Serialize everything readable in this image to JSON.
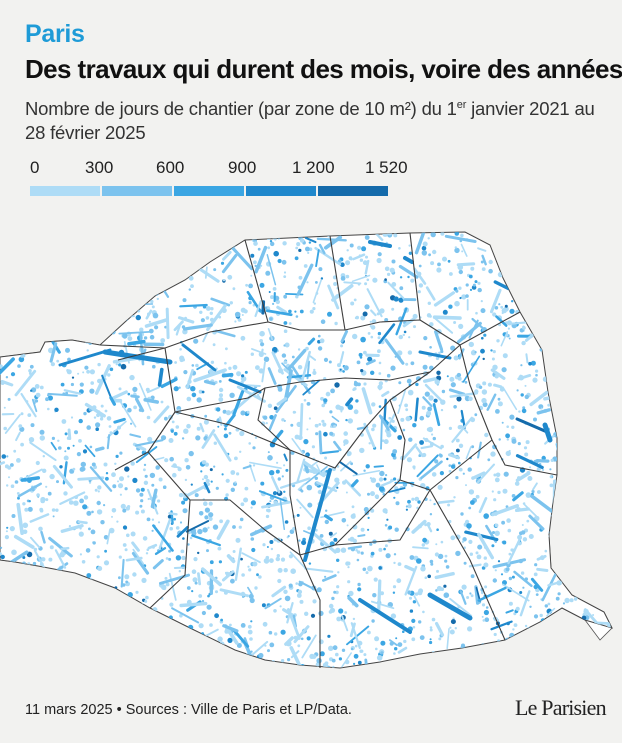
{
  "header": {
    "kicker": "Paris",
    "title": "Des travaux qui durent des mois, voire des années",
    "subtitle_main": "Nombre de jours de chantier (par zone de 10 m²) du 1",
    "subtitle_sup": "er",
    "subtitle_rest": " janvier 2021 au 28 février 2025"
  },
  "legend": {
    "labels": [
      "0",
      "300",
      "600",
      "900",
      "1 200",
      "1 520"
    ],
    "breaks": [
      0,
      300,
      600,
      900,
      1200,
      1520
    ],
    "colors": [
      "#aedcf6",
      "#7cc3ee",
      "#3ba6e3",
      "#1f88cc",
      "#156bab"
    ]
  },
  "colors": {
    "kicker": "#1e9bd7",
    "background": "#f2f2f0",
    "map_land": "#ffffff",
    "district_border": "#3e3e3e"
  },
  "footer": {
    "source": "11 mars 2025 • Sources : Ville de Paris et LP/Data.",
    "logo": "Le Parisien"
  }
}
